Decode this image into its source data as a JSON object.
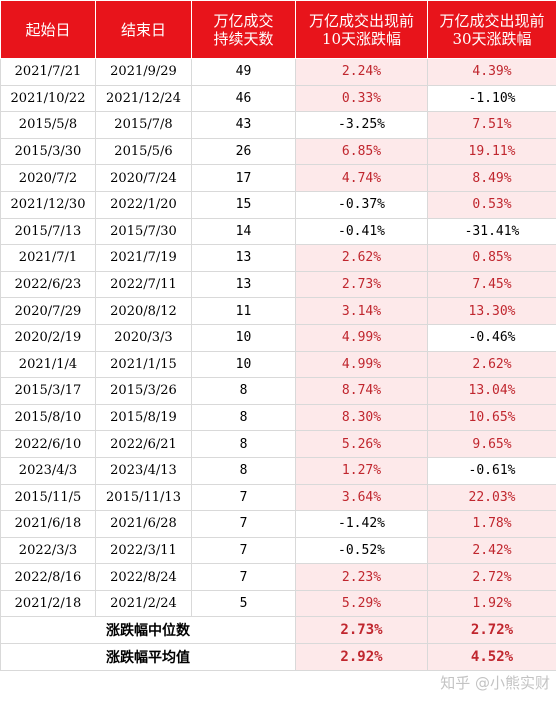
{
  "headers": [
    "起始日",
    "结束日",
    "万亿成交\n持续天数",
    "万亿成交出现前\n10天涨跌幅",
    "万亿成交出现前\n30天涨跌幅"
  ],
  "rows": [
    [
      "2021/7/21",
      "2021/9/29",
      "49",
      "2.24%",
      "4.39%"
    ],
    [
      "2021/10/22",
      "2021/12/24",
      "46",
      "0.33%",
      "-1.10%"
    ],
    [
      "2015/5/8",
      "2015/7/8",
      "43",
      "-3.25%",
      "7.51%"
    ],
    [
      "2015/3/30",
      "2015/5/6",
      "26",
      "6.85%",
      "19.11%"
    ],
    [
      "2020/7/2",
      "2020/7/24",
      "17",
      "4.74%",
      "8.49%"
    ],
    [
      "2021/12/30",
      "2022/1/20",
      "15",
      "-0.37%",
      "0.53%"
    ],
    [
      "2015/7/13",
      "2015/7/30",
      "14",
      "-0.41%",
      "-31.41%"
    ],
    [
      "2021/7/1",
      "2021/7/19",
      "13",
      "2.62%",
      "0.85%"
    ],
    [
      "2022/6/23",
      "2022/7/11",
      "13",
      "2.73%",
      "7.45%"
    ],
    [
      "2020/7/29",
      "2020/8/12",
      "11",
      "3.14%",
      "13.30%"
    ],
    [
      "2020/2/19",
      "2020/3/3",
      "10",
      "4.99%",
      "-0.46%"
    ],
    [
      "2021/1/4",
      "2021/1/15",
      "10",
      "4.99%",
      "2.62%"
    ],
    [
      "2015/3/17",
      "2015/3/26",
      "8",
      "8.74%",
      "13.04%"
    ],
    [
      "2015/8/10",
      "2015/8/19",
      "8",
      "8.30%",
      "10.65%"
    ],
    [
      "2022/6/10",
      "2022/6/21",
      "8",
      "5.26%",
      "9.65%"
    ],
    [
      "2023/4/3",
      "2023/4/13",
      "8",
      "1.27%",
      "-0.61%"
    ],
    [
      "2015/11/5",
      "2015/11/13",
      "7",
      "3.64%",
      "22.03%"
    ],
    [
      "2021/6/18",
      "2021/6/28",
      "7",
      "-1.42%",
      "1.78%"
    ],
    [
      "2022/3/3",
      "2022/3/11",
      "7",
      "-0.52%",
      "2.42%"
    ],
    [
      "2022/8/16",
      "2022/8/24",
      "7",
      "2.23%",
      "2.72%"
    ],
    [
      "2021/2/18",
      "2021/2/24",
      "5",
      "5.29%",
      "1.92%"
    ]
  ],
  "summary": [
    {
      "label": "涨跌幅中位数",
      "v10": "2.73%",
      "v30": "2.72%"
    },
    {
      "label": "涨跌幅平均值",
      "v10": "2.92%",
      "v30": "4.52%"
    }
  ],
  "watermark": "知乎 @小熊实财",
  "colors": {
    "header_bg": "#e8141b",
    "positive_bg": "#fde9ea",
    "positive_text": "#c0262e"
  }
}
